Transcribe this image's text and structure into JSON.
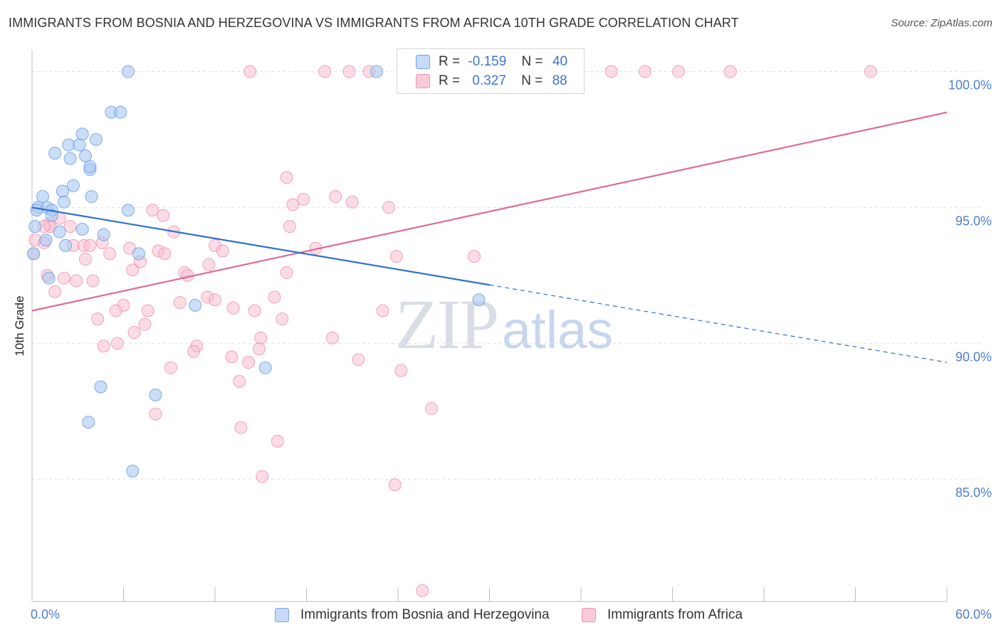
{
  "title": "IMMIGRANTS FROM BOSNIA AND HERZEGOVINA VS IMMIGRANTS FROM AFRICA 10TH GRADE CORRELATION CHART",
  "source": "Source: ZipAtlas.com",
  "watermark": {
    "zip": "ZIP",
    "atlas": "atlas"
  },
  "legend_top": {
    "rows": [
      {
        "r_label": "R =",
        "r_value": "-0.159",
        "n_label": "N =",
        "n_value": "40",
        "color": "#a9c8f2",
        "border": "#6f9fe0"
      },
      {
        "r_label": "R =",
        "r_value": "0.327",
        "n_label": "N =",
        "n_value": "88",
        "color": "#f8bfd0",
        "border": "#ec8fab"
      }
    ]
  },
  "legend_bottom": {
    "items": [
      {
        "label": "Immigrants from Bosnia and Herzegovina",
        "color": "#c5daf6",
        "border": "#7aa3e0"
      },
      {
        "label": "Immigrants from Africa",
        "color": "#f9cad8",
        "border": "#ec94ae"
      }
    ]
  },
  "chart_data": {
    "type": "scatter",
    "title": "IMMIGRANTS FROM BOSNIA AND HERZEGOVINA VS IMMIGRANTS FROM AFRICA 10TH GRADE CORRELATION CHART",
    "xlabel": "",
    "ylabel": "10th Grade",
    "xlim": [
      0,
      60
    ],
    "ylim": [
      80.5,
      100.8
    ],
    "x_tick_labels": [
      "0.0%",
      "60.0%"
    ],
    "y_ticks": [
      85,
      90,
      95,
      100
    ],
    "y_tick_labels": [
      "85.0%",
      "90.0%",
      "95.0%",
      "100.0%"
    ],
    "grid": true,
    "colors": {
      "blue_fill": "#a9c8f2",
      "blue_stroke": "#6f9fe0",
      "blue_line": "#2f6fd0",
      "pink_fill": "#f8bfd0",
      "pink_stroke": "#ec8fab",
      "pink_line": "#e06a93"
    },
    "series": [
      {
        "name": "Immigrants from Bosnia and Herzegovina",
        "R": -0.159,
        "N": 40,
        "trend": {
          "x0": 0,
          "y0": 95.0,
          "x1": 60,
          "y1": 89.3,
          "solid_until_x": 30
        },
        "points": [
          [
            6.3,
            100.0
          ],
          [
            22.6,
            100.0
          ],
          [
            5.2,
            98.5
          ],
          [
            5.8,
            98.5
          ],
          [
            3.3,
            97.7
          ],
          [
            4.2,
            97.5
          ],
          [
            2.4,
            97.3
          ],
          [
            3.1,
            97.3
          ],
          [
            1.5,
            97.0
          ],
          [
            2.5,
            96.8
          ],
          [
            3.5,
            96.9
          ],
          [
            3.8,
            96.4
          ],
          [
            3.8,
            96.5
          ],
          [
            0.7,
            95.4
          ],
          [
            2.0,
            95.6
          ],
          [
            2.7,
            95.8
          ],
          [
            3.9,
            95.4
          ],
          [
            2.1,
            95.2
          ],
          [
            0.4,
            95.0
          ],
          [
            1.0,
            95.0
          ],
          [
            1.3,
            94.9
          ],
          [
            0.3,
            94.9
          ],
          [
            6.3,
            94.9
          ],
          [
            1.3,
            94.7
          ],
          [
            0.2,
            94.3
          ],
          [
            3.3,
            94.2
          ],
          [
            1.8,
            94.1
          ],
          [
            4.7,
            94.0
          ],
          [
            0.9,
            93.8
          ],
          [
            2.2,
            93.6
          ],
          [
            7.0,
            93.3
          ],
          [
            0.1,
            93.3
          ],
          [
            1.1,
            92.4
          ],
          [
            10.7,
            91.4
          ],
          [
            29.3,
            91.6
          ],
          [
            15.3,
            89.1
          ],
          [
            4.5,
            88.4
          ],
          [
            8.1,
            88.1
          ],
          [
            3.7,
            87.1
          ],
          [
            6.6,
            85.3
          ]
        ]
      },
      {
        "name": "Immigrants from Africa",
        "R": 0.327,
        "N": 88,
        "trend": {
          "x0": 0,
          "y0": 91.2,
          "x1": 60,
          "y1": 98.5
        },
        "points": [
          [
            14.3,
            100.0
          ],
          [
            19.2,
            100.0
          ],
          [
            20.8,
            100.0
          ],
          [
            22.1,
            100.0
          ],
          [
            24.7,
            100.0
          ],
          [
            34.1,
            100.0
          ],
          [
            38.0,
            100.0
          ],
          [
            40.2,
            100.0
          ],
          [
            42.4,
            100.0
          ],
          [
            45.8,
            100.0
          ],
          [
            55.0,
            100.0
          ],
          [
            16.7,
            96.1
          ],
          [
            17.8,
            95.3
          ],
          [
            19.9,
            95.4
          ],
          [
            21.0,
            95.2
          ],
          [
            17.1,
            95.1
          ],
          [
            23.4,
            95.0
          ],
          [
            7.9,
            94.9
          ],
          [
            8.6,
            94.7
          ],
          [
            1.8,
            94.6
          ],
          [
            1.1,
            94.4
          ],
          [
            1.2,
            94.3
          ],
          [
            0.8,
            94.3
          ],
          [
            2.5,
            94.3
          ],
          [
            16.9,
            94.3
          ],
          [
            9.3,
            94.1
          ],
          [
            0.2,
            93.8
          ],
          [
            0.8,
            93.7
          ],
          [
            2.7,
            93.6
          ],
          [
            3.4,
            93.6
          ],
          [
            3.8,
            93.6
          ],
          [
            4.6,
            93.7
          ],
          [
            6.4,
            93.5
          ],
          [
            5.1,
            93.3
          ],
          [
            8.3,
            93.4
          ],
          [
            8.7,
            93.3
          ],
          [
            12.0,
            93.6
          ],
          [
            12.5,
            93.4
          ],
          [
            18.6,
            93.5
          ],
          [
            23.9,
            93.2
          ],
          [
            29.0,
            93.2
          ],
          [
            3.5,
            93.1
          ],
          [
            7.1,
            93.0
          ],
          [
            11.6,
            92.9
          ],
          [
            6.6,
            92.7
          ],
          [
            10.0,
            92.6
          ],
          [
            10.2,
            92.5
          ],
          [
            16.7,
            92.6
          ],
          [
            2.1,
            92.4
          ],
          [
            1.0,
            92.5
          ],
          [
            2.9,
            92.3
          ],
          [
            4.0,
            92.3
          ],
          [
            1.5,
            91.9
          ],
          [
            11.5,
            91.7
          ],
          [
            12.0,
            91.6
          ],
          [
            15.9,
            91.7
          ],
          [
            9.7,
            91.5
          ],
          [
            6.0,
            91.4
          ],
          [
            13.2,
            91.3
          ],
          [
            14.6,
            91.2
          ],
          [
            5.5,
            91.2
          ],
          [
            7.6,
            91.2
          ],
          [
            23.0,
            91.2
          ],
          [
            4.3,
            90.9
          ],
          [
            16.4,
            90.9
          ],
          [
            7.4,
            90.7
          ],
          [
            6.7,
            90.4
          ],
          [
            19.7,
            90.2
          ],
          [
            15.0,
            90.2
          ],
          [
            5.6,
            90.0
          ],
          [
            4.7,
            89.9
          ],
          [
            10.8,
            89.9
          ],
          [
            14.9,
            89.8
          ],
          [
            10.6,
            89.7
          ],
          [
            13.1,
            89.5
          ],
          [
            21.4,
            89.4
          ],
          [
            14.2,
            89.3
          ],
          [
            9.1,
            89.1
          ],
          [
            24.2,
            89.0
          ],
          [
            13.6,
            88.6
          ],
          [
            26.2,
            87.6
          ],
          [
            8.1,
            87.4
          ],
          [
            13.7,
            86.9
          ],
          [
            16.1,
            86.4
          ],
          [
            15.1,
            85.1
          ],
          [
            23.8,
            84.8
          ],
          [
            25.6,
            80.9
          ],
          [
            0.1,
            93.3
          ]
        ]
      }
    ]
  }
}
